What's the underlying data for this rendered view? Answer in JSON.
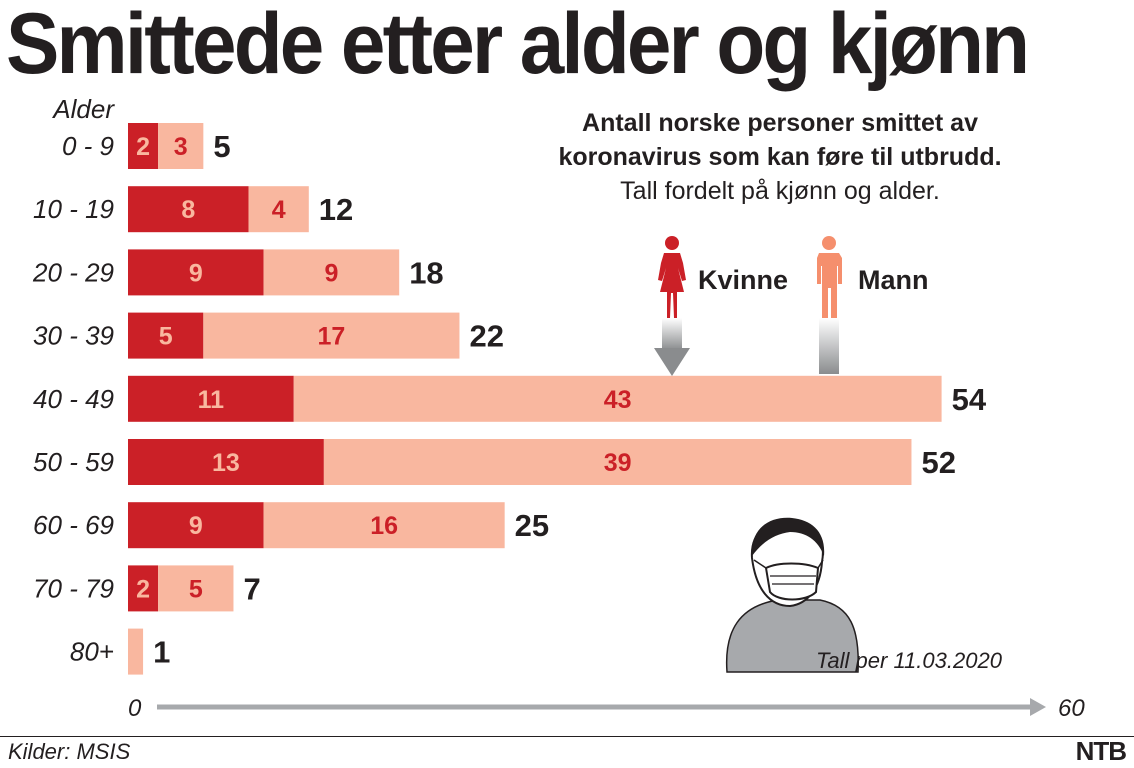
{
  "title": "Smittede etter alder og kjønn",
  "subtitle_bold_line1": "Antall norske personer smittet av",
  "subtitle_bold_line2": "koronavirus som kan føre til utbrudd.",
  "subtitle_light": "Tall fordelt på kjønn og alder.",
  "legend": {
    "female_label": "Kvinne",
    "male_label": "Mann",
    "female_icon": "woman-icon",
    "male_icon": "man-icon"
  },
  "date_note": "Tall per 11.03.2020",
  "source": "Kilder: MSIS",
  "brand": "NTB",
  "colors": {
    "female": "#cb2027",
    "male": "#f9b79f",
    "male_text": "#cb2027",
    "female_text": "#f9b79f",
    "text": "#231f20",
    "axis": "#a7a9ac"
  },
  "chart_data": {
    "type": "bar",
    "orientation": "horizontal",
    "stacked": true,
    "ylabel": "Alder",
    "categories": [
      "0 - 9",
      "10 - 19",
      "20 - 29",
      "30 - 39",
      "40 - 49",
      "50 - 59",
      "60 - 69",
      "70 - 79",
      "80+"
    ],
    "series": [
      {
        "name": "Kvinne",
        "values": [
          2,
          8,
          9,
          5,
          11,
          13,
          9,
          2,
          0
        ]
      },
      {
        "name": "Mann",
        "values": [
          3,
          4,
          9,
          17,
          43,
          39,
          16,
          5,
          1
        ]
      }
    ],
    "totals": [
      5,
      12,
      18,
      22,
      54,
      52,
      25,
      7,
      1
    ],
    "xlim": [
      0,
      60
    ],
    "xticks": [
      "0",
      "60"
    ]
  }
}
